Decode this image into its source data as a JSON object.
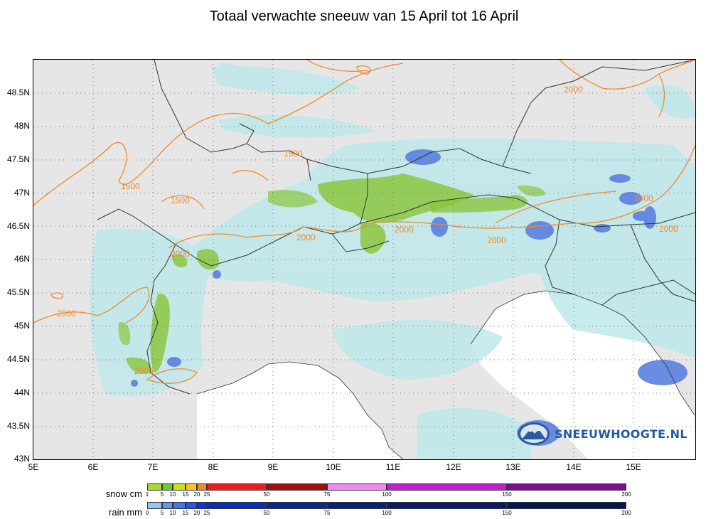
{
  "title": "Totaal verwachte sneeuw van 15 April tot 16 April",
  "map": {
    "lat_labels": [
      "48.5N",
      "48N",
      "47.5N",
      "47N",
      "46.5N",
      "46N",
      "45.5N",
      "45N",
      "44.5N",
      "44N",
      "43.5N",
      "43N"
    ],
    "lon_labels": [
      "5E",
      "6E",
      "7E",
      "8E",
      "9E",
      "10E",
      "11E",
      "12E",
      "13E",
      "14E",
      "15E"
    ],
    "contour_labels": [
      "1500",
      "1500",
      "1500",
      "2000",
      "2000",
      "2000",
      "2000",
      "2000",
      "2000",
      "2000",
      "2000",
      "2000"
    ],
    "colors": {
      "land": "#e6e6e6",
      "sea": "#ffffff",
      "rain": "#bfe8ea",
      "snow": "#8cc63f",
      "heavy_rain": "#5b7fe0",
      "contour": "#f08a2a",
      "border": "#333333"
    }
  },
  "legend": {
    "snow_label": "snow cm",
    "rain_label": "rain mm",
    "snow_ticks": [
      "1",
      "5",
      "10",
      "15",
      "20",
      "25",
      "50",
      "75",
      "100",
      "150",
      "200"
    ],
    "rain_ticks": [
      "0",
      "5",
      "10",
      "15",
      "20",
      "25",
      "50",
      "75",
      "100",
      "150",
      "200"
    ],
    "snow_colors": [
      "#a6d633",
      "#66cc33",
      "#ccdd22",
      "#f2c530",
      "#f08a30",
      "#e82020",
      "#a01010",
      "#ee88ee",
      "#bb22cc",
      "#7a1090"
    ],
    "rain_colors": [
      "#99c6f0",
      "#6699ee",
      "#4477ee",
      "#2255ee",
      "#1133dd",
      "#0a2eb8",
      "#08288f",
      "#08217a",
      "#0a1a66",
      "#071554"
    ]
  },
  "watermark": {
    "text": "SNEEUWHOOGTE.NL",
    "icon": "mountain-logo-icon"
  }
}
